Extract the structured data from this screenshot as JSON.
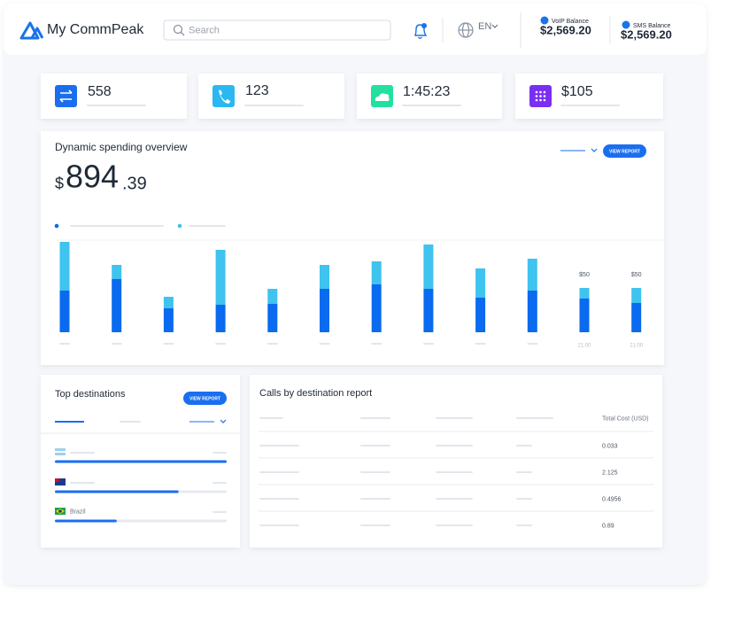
{
  "header": {
    "brand": "My CommPeak",
    "search": "Search",
    "language": "EN",
    "voip": {
      "label": "VoIP Balance",
      "value": "$2,569.20"
    },
    "sms": {
      "label": "SMS Balance",
      "value": "$2,569.20"
    }
  },
  "stats": [
    "558",
    "123",
    "1:45:23",
    "$105"
  ],
  "spending": {
    "title": "Dynamic spending overview",
    "currency": "$",
    "amount": "894",
    "cents": ".39",
    "button": "VIEW REPORT"
  },
  "chart_data": {
    "type": "bar",
    "stacked": true,
    "categories": [
      null,
      null,
      null,
      null,
      null,
      null,
      null,
      null,
      null,
      null,
      "21:00",
      "21:00"
    ],
    "series": [
      {
        "color": "#0a6af0",
        "values": [
          47,
          60,
          27,
          31,
          32,
          49,
          54,
          49,
          39,
          47,
          38,
          33
        ]
      },
      {
        "color": "#3fc3ef",
        "values": [
          55,
          16,
          13,
          62,
          17,
          27,
          26,
          50,
          33,
          36,
          12,
          17
        ]
      }
    ],
    "totals": {
      "values": [
        null,
        null,
        null,
        null,
        null,
        null,
        null,
        null,
        null,
        null,
        50,
        50
      ],
      "value_labels": [
        null,
        null,
        null,
        null,
        null,
        null,
        null,
        null,
        null,
        null,
        "$50",
        "$50"
      ]
    }
  },
  "destinations": {
    "title": "Top destinations",
    "button": "VIEW REPORT",
    "rows": [
      {
        "progress": 100
      },
      {
        "progress": 72
      },
      {
        "label": "Brazil",
        "progress": 36
      }
    ]
  },
  "calls": {
    "title": "Calls by destination report",
    "cost_header": "Total Cost (USD)",
    "costs": [
      "0.033",
      "2.125",
      "0.4956",
      "0.89"
    ]
  }
}
